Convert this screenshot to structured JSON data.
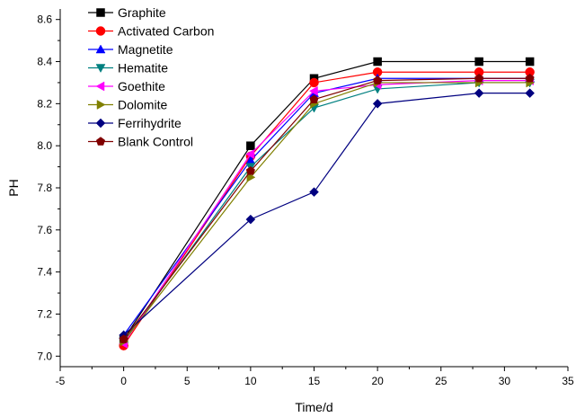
{
  "chart_data": {
    "type": "line",
    "title": "",
    "xlabel": "Time/d",
    "ylabel": "PH",
    "xlim": [
      -5,
      35
    ],
    "ylim": [
      6.95,
      8.65
    ],
    "xticks": [
      -5,
      0,
      5,
      10,
      15,
      20,
      25,
      30,
      35
    ],
    "yticks": [
      7.0,
      7.2,
      7.4,
      7.6,
      7.8,
      8.0,
      8.2,
      8.4,
      8.6
    ],
    "x": [
      0,
      10,
      15,
      20,
      28,
      32
    ],
    "grid": false,
    "legend_position": "top-left",
    "series": [
      {
        "name": "Graphite",
        "color": "#000000",
        "marker": "square",
        "values": [
          7.08,
          8.0,
          8.32,
          8.4,
          8.4,
          8.4
        ]
      },
      {
        "name": "Activated Carbon",
        "color": "#ff0000",
        "marker": "circle",
        "values": [
          7.05,
          7.95,
          8.3,
          8.35,
          8.35,
          8.35
        ]
      },
      {
        "name": "Magnetite",
        "color": "#0000ff",
        "marker": "triangle-up",
        "values": [
          7.1,
          7.93,
          8.25,
          8.32,
          8.32,
          8.32
        ]
      },
      {
        "name": "Hematite",
        "color": "#008080",
        "marker": "triangle-down",
        "values": [
          7.07,
          7.9,
          8.18,
          8.27,
          8.3,
          8.3
        ]
      },
      {
        "name": "Goethite",
        "color": "#ff00ff",
        "marker": "triangle-left",
        "values": [
          7.06,
          7.96,
          8.26,
          8.29,
          8.31,
          8.31
        ]
      },
      {
        "name": "Dolomite",
        "color": "#808000",
        "marker": "triangle-right",
        "values": [
          7.07,
          7.85,
          8.2,
          8.3,
          8.3,
          8.3
        ]
      },
      {
        "name": "Ferrihydrite",
        "color": "#000080",
        "marker": "diamond",
        "values": [
          7.1,
          7.65,
          7.78,
          8.2,
          8.25,
          8.25
        ]
      },
      {
        "name": "Blank Control",
        "color": "#800000",
        "marker": "pentagon",
        "values": [
          7.08,
          7.88,
          8.22,
          8.31,
          8.32,
          8.32
        ]
      }
    ]
  }
}
